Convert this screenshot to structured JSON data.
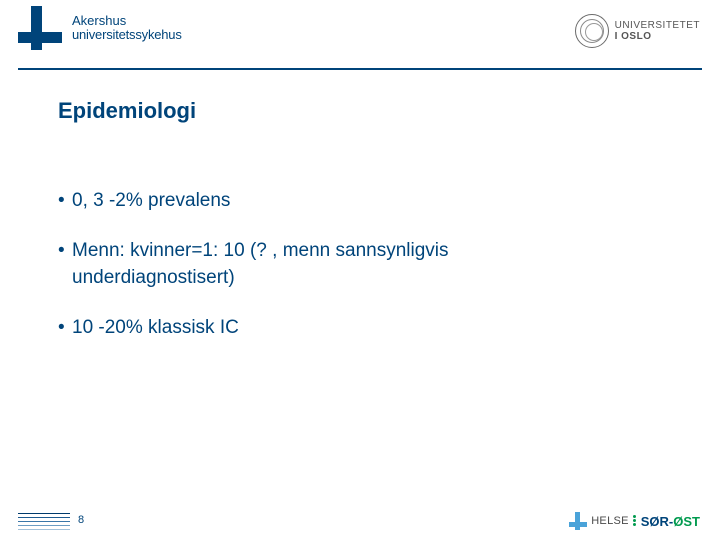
{
  "header": {
    "left_logo": {
      "line1": "Akershus",
      "line2": "universitetssykehus",
      "color": "#00447a"
    },
    "right_logo": {
      "line1": "UNIVERSITETET",
      "line2": "I OSLO"
    }
  },
  "content": {
    "title": "Epidemiologi",
    "bullets": [
      {
        "text": "0, 3 -2% prevalens"
      },
      {
        "text": "Menn: kvinner=1: 10 (? , menn sannsynligvis",
        "cont": "underdiagnostisert)"
      },
      {
        "text": "10 -20% klassisk IC"
      }
    ],
    "text_color": "#00447a",
    "title_fontsize": 22,
    "bullet_fontsize": 19
  },
  "footer": {
    "page_number": "8",
    "logo": {
      "word": "HELSE",
      "brand_blue": "SØR-",
      "brand_green": "ØST"
    },
    "line_colors": [
      "#003a6b",
      "#1d5a8f",
      "#3a76a8",
      "#6c9dc3",
      "#a2c1da"
    ]
  },
  "colors": {
    "brand_blue": "#00447a",
    "helse_blue": "#4aa3d9",
    "helse_green": "#009a4e",
    "background": "#ffffff"
  }
}
